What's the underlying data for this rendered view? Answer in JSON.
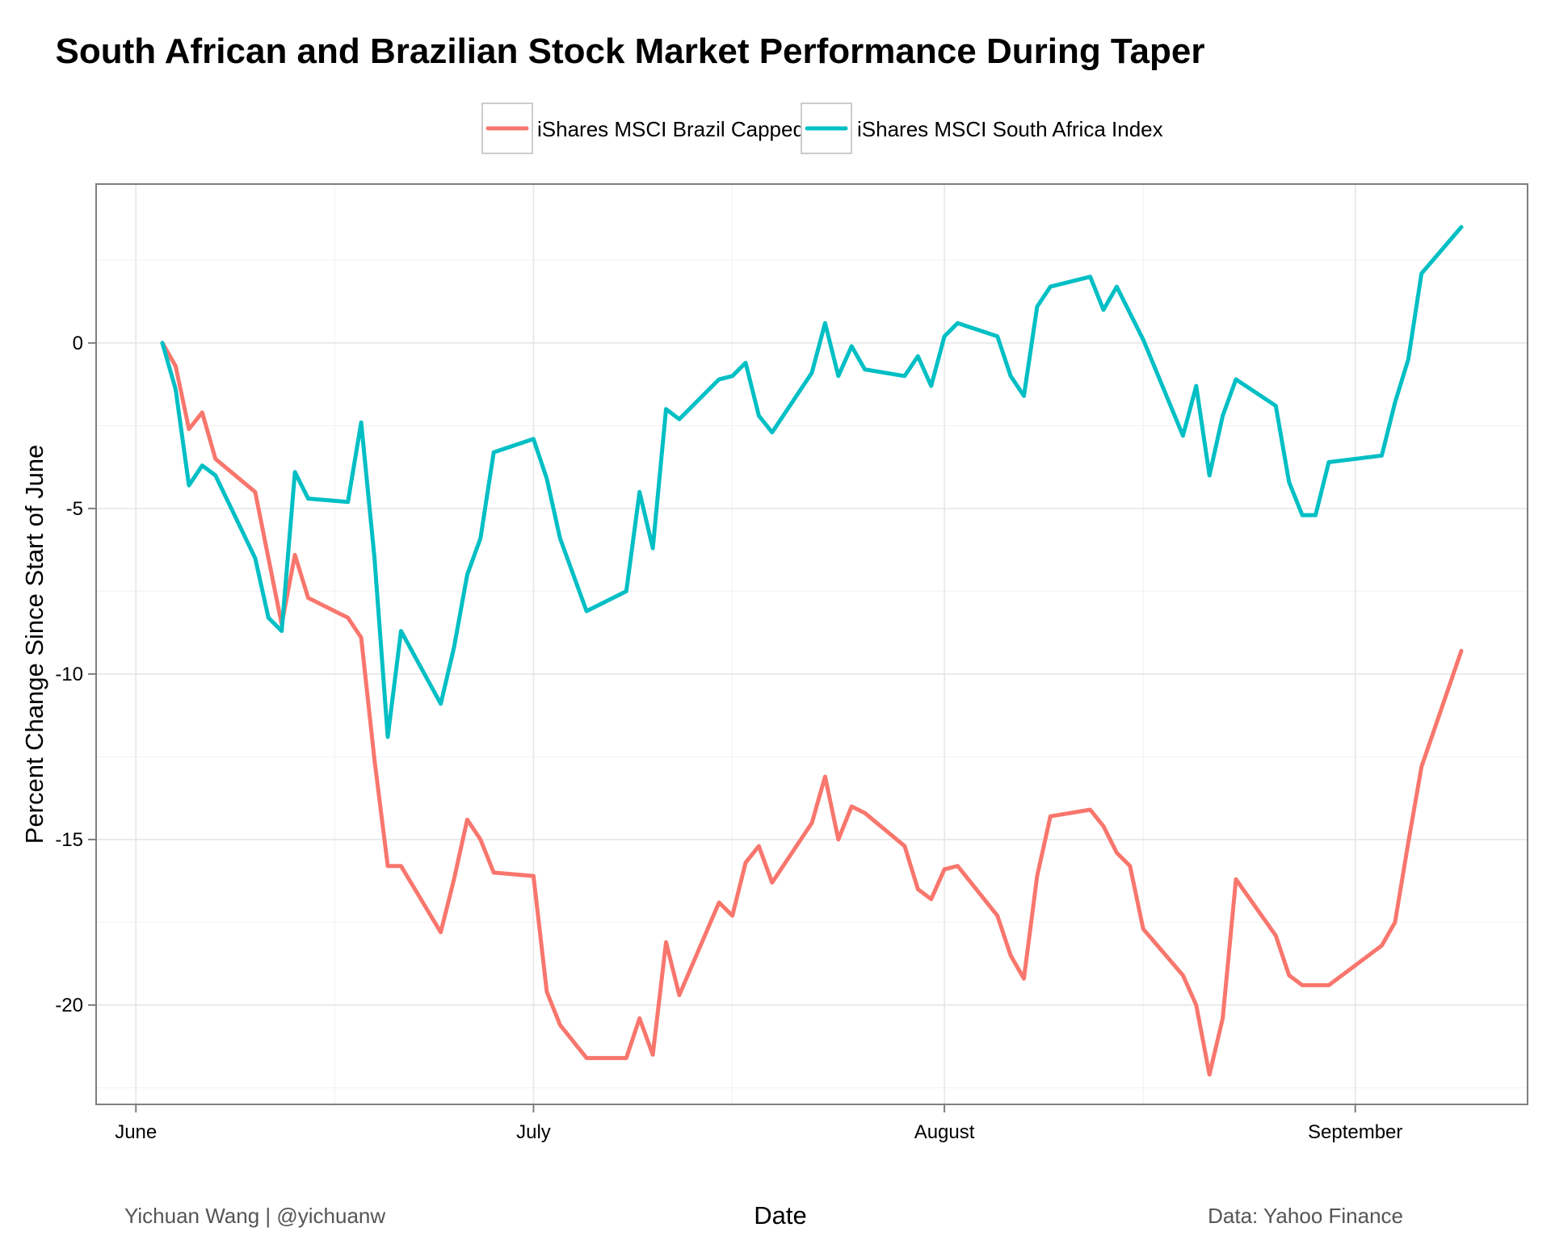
{
  "chart_data": {
    "type": "line",
    "title": "South African and Brazilian Stock Market Performance During Taper",
    "xlabel": "Date",
    "ylabel": "Percent Change Since Start of June",
    "x_tick_labels": [
      "June",
      "July",
      "August",
      "September"
    ],
    "y_ticks": [
      -20,
      -15,
      -10,
      -5,
      0
    ],
    "y_tick_labels": [
      "-20",
      "-15",
      "-10",
      "-5",
      "0"
    ],
    "ylim": [
      -23.0,
      4.8
    ],
    "xlim": [
      "2013-05-29",
      "2013-09-14"
    ],
    "grid": true,
    "legend_position": "top",
    "series": [
      {
        "name": "iShares MSCI Brazil Capped",
        "color": "#F8766D",
        "points": [
          [
            "2013-06-03",
            0.0
          ],
          [
            "2013-06-04",
            -0.7
          ],
          [
            "2013-06-05",
            -2.6
          ],
          [
            "2013-06-06",
            -2.1
          ],
          [
            "2013-06-07",
            -3.5
          ],
          [
            "2013-06-10",
            -4.5
          ],
          [
            "2013-06-11",
            -6.5
          ],
          [
            "2013-06-12",
            -8.5
          ],
          [
            "2013-06-13",
            -6.4
          ],
          [
            "2013-06-14",
            -7.7
          ],
          [
            "2013-06-17",
            -8.3
          ],
          [
            "2013-06-18",
            -8.9
          ],
          [
            "2013-06-19",
            -12.6
          ],
          [
            "2013-06-20",
            -15.8
          ],
          [
            "2013-06-21",
            -15.8
          ],
          [
            "2013-06-24",
            -17.8
          ],
          [
            "2013-06-25",
            -16.2
          ],
          [
            "2013-06-26",
            -14.4
          ],
          [
            "2013-06-27",
            -15.0
          ],
          [
            "2013-06-28",
            -16.0
          ],
          [
            "2013-07-01",
            -16.1
          ],
          [
            "2013-07-02",
            -19.6
          ],
          [
            "2013-07-03",
            -20.6
          ],
          [
            "2013-07-05",
            -21.6
          ],
          [
            "2013-07-08",
            -21.6
          ],
          [
            "2013-07-09",
            -20.4
          ],
          [
            "2013-07-10",
            -21.5
          ],
          [
            "2013-07-11",
            -18.1
          ],
          [
            "2013-07-12",
            -19.7
          ],
          [
            "2013-07-15",
            -16.9
          ],
          [
            "2013-07-16",
            -17.3
          ],
          [
            "2013-07-17",
            -15.7
          ],
          [
            "2013-07-18",
            -15.2
          ],
          [
            "2013-07-19",
            -16.3
          ],
          [
            "2013-07-22",
            -14.5
          ],
          [
            "2013-07-23",
            -13.1
          ],
          [
            "2013-07-24",
            -15.0
          ],
          [
            "2013-07-25",
            -14.0
          ],
          [
            "2013-07-26",
            -14.2
          ],
          [
            "2013-07-29",
            -15.2
          ],
          [
            "2013-07-30",
            -16.5
          ],
          [
            "2013-07-31",
            -16.8
          ],
          [
            "2013-08-01",
            -15.9
          ],
          [
            "2013-08-02",
            -15.8
          ],
          [
            "2013-08-05",
            -17.3
          ],
          [
            "2013-08-06",
            -18.5
          ],
          [
            "2013-08-07",
            -19.2
          ],
          [
            "2013-08-08",
            -16.1
          ],
          [
            "2013-08-09",
            -14.3
          ],
          [
            "2013-08-12",
            -14.1
          ],
          [
            "2013-08-13",
            -14.6
          ],
          [
            "2013-08-14",
            -15.4
          ],
          [
            "2013-08-15",
            -15.8
          ],
          [
            "2013-08-16",
            -17.7
          ],
          [
            "2013-08-19",
            -19.1
          ],
          [
            "2013-08-20",
            -20.0
          ],
          [
            "2013-08-21",
            -22.1
          ],
          [
            "2013-08-22",
            -20.4
          ],
          [
            "2013-08-23",
            -16.2
          ],
          [
            "2013-08-26",
            -17.9
          ],
          [
            "2013-08-27",
            -19.1
          ],
          [
            "2013-08-28",
            -19.4
          ],
          [
            "2013-08-29",
            -19.4
          ],
          [
            "2013-08-30",
            -19.4
          ],
          [
            "2013-09-03",
            -18.2
          ],
          [
            "2013-09-04",
            -17.5
          ],
          [
            "2013-09-05",
            -15.1
          ],
          [
            "2013-09-06",
            -12.8
          ],
          [
            "2013-09-09",
            -9.3
          ]
        ]
      },
      {
        "name": "iShares MSCI South Africa Index",
        "color": "#00BFC4",
        "points": [
          [
            "2013-06-03",
            0.0
          ],
          [
            "2013-06-04",
            -1.4
          ],
          [
            "2013-06-05",
            -4.3
          ],
          [
            "2013-06-06",
            -3.7
          ],
          [
            "2013-06-07",
            -4.0
          ],
          [
            "2013-06-10",
            -6.5
          ],
          [
            "2013-06-11",
            -8.3
          ],
          [
            "2013-06-12",
            -8.7
          ],
          [
            "2013-06-13",
            -3.9
          ],
          [
            "2013-06-14",
            -4.7
          ],
          [
            "2013-06-17",
            -4.8
          ],
          [
            "2013-06-18",
            -2.4
          ],
          [
            "2013-06-19",
            -6.5
          ],
          [
            "2013-06-20",
            -11.9
          ],
          [
            "2013-06-21",
            -8.7
          ],
          [
            "2013-06-24",
            -10.9
          ],
          [
            "2013-06-25",
            -9.2
          ],
          [
            "2013-06-26",
            -7.0
          ],
          [
            "2013-06-27",
            -5.9
          ],
          [
            "2013-06-28",
            -3.3
          ],
          [
            "2013-07-01",
            -2.9
          ],
          [
            "2013-07-02",
            -4.1
          ],
          [
            "2013-07-03",
            -5.9
          ],
          [
            "2013-07-05",
            -8.1
          ],
          [
            "2013-07-08",
            -7.5
          ],
          [
            "2013-07-09",
            -4.5
          ],
          [
            "2013-07-10",
            -6.2
          ],
          [
            "2013-07-11",
            -2.0
          ],
          [
            "2013-07-12",
            -2.3
          ],
          [
            "2013-07-15",
            -1.1
          ],
          [
            "2013-07-16",
            -1.0
          ],
          [
            "2013-07-17",
            -0.6
          ],
          [
            "2013-07-18",
            -2.2
          ],
          [
            "2013-07-19",
            -2.7
          ],
          [
            "2013-07-22",
            -0.9
          ],
          [
            "2013-07-23",
            0.6
          ],
          [
            "2013-07-24",
            -1.0
          ],
          [
            "2013-07-25",
            -0.1
          ],
          [
            "2013-07-26",
            -0.8
          ],
          [
            "2013-07-29",
            -1.0
          ],
          [
            "2013-07-30",
            -0.4
          ],
          [
            "2013-07-31",
            -1.3
          ],
          [
            "2013-08-01",
            0.2
          ],
          [
            "2013-08-02",
            0.6
          ],
          [
            "2013-08-05",
            0.2
          ],
          [
            "2013-08-06",
            -1.0
          ],
          [
            "2013-08-07",
            -1.6
          ],
          [
            "2013-08-08",
            1.1
          ],
          [
            "2013-08-09",
            1.7
          ],
          [
            "2013-08-12",
            2.0
          ],
          [
            "2013-08-13",
            1.0
          ],
          [
            "2013-08-14",
            1.7
          ],
          [
            "2013-08-16",
            0.1
          ],
          [
            "2013-08-19",
            -2.8
          ],
          [
            "2013-08-20",
            -1.3
          ],
          [
            "2013-08-21",
            -4.0
          ],
          [
            "2013-08-22",
            -2.2
          ],
          [
            "2013-08-23",
            -1.1
          ],
          [
            "2013-08-26",
            -1.9
          ],
          [
            "2013-08-27",
            -4.2
          ],
          [
            "2013-08-28",
            -5.2
          ],
          [
            "2013-08-29",
            -5.2
          ],
          [
            "2013-08-30",
            -3.6
          ],
          [
            "2013-09-03",
            -3.4
          ],
          [
            "2013-09-04",
            -1.8
          ],
          [
            "2013-09-05",
            -0.5
          ],
          [
            "2013-09-06",
            2.1
          ],
          [
            "2013-09-09",
            3.5
          ]
        ]
      }
    ]
  },
  "footer": {
    "left": "Yichuan Wang | @yichuanw",
    "right": "Data: Yahoo Finance"
  }
}
